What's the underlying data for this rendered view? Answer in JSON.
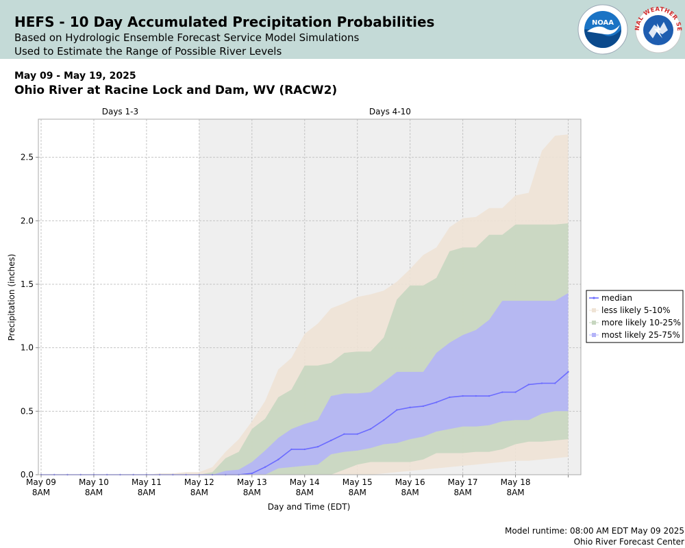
{
  "header": {
    "title": "HEFS - 10 Day Accumulated Precipitation Probabilities",
    "subtitle_1": "Based on Hydrologic Ensemble Forecast Service Model Simulations",
    "subtitle_2": "Used to Estimate the Range of Possible River Levels",
    "logo_1": "noaa-logo",
    "logo_2": "national-weather-service-logo",
    "logo_2_text": "NATIONAL WEATHER SERVICE"
  },
  "date_range": "May 09 - May 19, 2025",
  "station": "Ohio River at Racine Lock and Dam, WV (RACW2)",
  "footer": {
    "runtime": "Model runtime: 08:00 AM EDT May 09 2025",
    "center": "Ohio River Forecast Center"
  },
  "colors": {
    "header_bg": "#c4dad7",
    "days_1_3_bg": "#ffffff",
    "days_4_10_bg": "#efefef",
    "median": "#6b6bff",
    "band_5_10": "#efe3d5",
    "band_10_25": "#c6d6bf",
    "band_25_75": "#b3b3f8"
  },
  "chart_data": {
    "type": "area",
    "xlabel": "Day and Time (EDT)",
    "ylabel": "Precipitation (inches)",
    "ylim": [
      0,
      2.8
    ],
    "yticks": [
      "0.0",
      "0.5",
      "1.0",
      "1.5",
      "2.0",
      "2.5"
    ],
    "xlim_days": [
      0,
      10.25
    ],
    "xticks": [
      {
        "day": 0,
        "line1": "May 09",
        "line2": "8AM"
      },
      {
        "day": 1,
        "line1": "May 10",
        "line2": "8AM"
      },
      {
        "day": 2,
        "line1": "May 11",
        "line2": "8AM"
      },
      {
        "day": 3,
        "line1": "May 12",
        "line2": "8AM"
      },
      {
        "day": 4,
        "line1": "May 13",
        "line2": "8AM"
      },
      {
        "day": 5,
        "line1": "May 14",
        "line2": "8AM"
      },
      {
        "day": 6,
        "line1": "May 15",
        "line2": "8AM"
      },
      {
        "day": 7,
        "line1": "May 16",
        "line2": "8AM"
      },
      {
        "day": 8,
        "line1": "May 17",
        "line2": "8AM"
      },
      {
        "day": 9,
        "line1": "May 18",
        "line2": "8AM"
      }
    ],
    "grid": true,
    "legend_position": "right",
    "periods": [
      {
        "label": "Days 1-3",
        "start_day": 0,
        "end_day": 3
      },
      {
        "label": "Days 4-10",
        "start_day": 3,
        "end_day": 10.25
      }
    ],
    "x_days": [
      0,
      0.25,
      0.5,
      0.75,
      1,
      1.25,
      1.5,
      1.75,
      2,
      2.25,
      2.5,
      2.75,
      3,
      3.25,
      3.5,
      3.75,
      4,
      4.25,
      4.5,
      4.75,
      5,
      5.25,
      5.5,
      5.75,
      6,
      6.25,
      6.5,
      6.75,
      7,
      7.25,
      7.5,
      7.75,
      8,
      8.25,
      8.5,
      8.75,
      9,
      9.25,
      9.5,
      9.75,
      10
    ],
    "series": [
      {
        "name": "less likely 5-10%",
        "kind": "band",
        "lower": [
          0,
          0,
          0,
          0,
          0,
          0,
          0,
          0,
          0,
          0,
          0,
          0,
          0,
          0,
          0,
          0,
          0,
          0,
          0,
          0,
          0,
          0,
          0,
          0,
          0,
          0,
          0.01,
          0.02,
          0.03,
          0.04,
          0.05,
          0.06,
          0.07,
          0.08,
          0.09,
          0.1,
          0.11,
          0.11,
          0.12,
          0.13,
          0.14
        ],
        "upper": [
          0,
          0,
          0,
          0,
          0,
          0,
          0,
          0,
          0,
          0.01,
          0.01,
          0.02,
          0.02,
          0.06,
          0.18,
          0.28,
          0.42,
          0.58,
          0.83,
          0.92,
          1.11,
          1.19,
          1.31,
          1.35,
          1.4,
          1.42,
          1.45,
          1.52,
          1.62,
          1.73,
          1.79,
          1.95,
          2.02,
          2.03,
          2.1,
          2.1,
          2.2,
          2.22,
          2.55,
          2.67,
          2.68
        ]
      },
      {
        "name": "more likely 10-25%",
        "kind": "band",
        "lower": [
          0,
          0,
          0,
          0,
          0,
          0,
          0,
          0,
          0,
          0,
          0,
          0,
          0,
          0,
          0,
          0,
          0,
          0,
          0,
          0,
          0,
          0,
          0,
          0.04,
          0.08,
          0.1,
          0.1,
          0.1,
          0.1,
          0.12,
          0.17,
          0.17,
          0.17,
          0.18,
          0.18,
          0.2,
          0.24,
          0.26,
          0.26,
          0.27,
          0.28
        ],
        "upper": [
          0,
          0,
          0,
          0,
          0,
          0,
          0,
          0,
          0,
          0,
          0,
          0,
          0,
          0.02,
          0.13,
          0.18,
          0.36,
          0.44,
          0.61,
          0.67,
          0.86,
          0.86,
          0.88,
          0.96,
          0.97,
          0.97,
          1.08,
          1.38,
          1.49,
          1.49,
          1.55,
          1.76,
          1.79,
          1.79,
          1.89,
          1.89,
          1.97,
          1.97,
          1.97,
          1.97,
          1.98
        ]
      },
      {
        "name": "most likely 25-75%",
        "kind": "band",
        "lower": [
          0,
          0,
          0,
          0,
          0,
          0,
          0,
          0,
          0,
          0,
          0,
          0,
          0,
          0,
          0,
          0,
          0,
          0,
          0.05,
          0.06,
          0.07,
          0.08,
          0.16,
          0.18,
          0.19,
          0.21,
          0.24,
          0.25,
          0.28,
          0.3,
          0.34,
          0.36,
          0.38,
          0.38,
          0.39,
          0.42,
          0.43,
          0.43,
          0.48,
          0.5,
          0.5
        ],
        "upper": [
          0,
          0,
          0,
          0,
          0,
          0,
          0,
          0,
          0,
          0,
          0,
          0,
          0,
          0,
          0.03,
          0.04,
          0.1,
          0.19,
          0.29,
          0.36,
          0.4,
          0.43,
          0.62,
          0.64,
          0.64,
          0.65,
          0.73,
          0.81,
          0.81,
          0.81,
          0.96,
          1.04,
          1.1,
          1.14,
          1.22,
          1.37,
          1.37,
          1.37,
          1.37,
          1.37,
          1.43
        ]
      },
      {
        "name": "median",
        "kind": "line",
        "values": [
          0,
          0,
          0,
          0,
          0,
          0,
          0,
          0,
          0,
          0,
          0,
          0,
          0,
          0,
          0,
          0,
          0.01,
          0.06,
          0.12,
          0.2,
          0.2,
          0.22,
          0.27,
          0.32,
          0.32,
          0.36,
          0.43,
          0.51,
          0.53,
          0.54,
          0.57,
          0.61,
          0.62,
          0.62,
          0.62,
          0.65,
          0.65,
          0.71,
          0.72,
          0.72,
          0.81
        ]
      }
    ],
    "legend": [
      "median",
      "less likely 5-10%",
      "more likely 10-25%",
      "most likely 25-75%"
    ]
  }
}
